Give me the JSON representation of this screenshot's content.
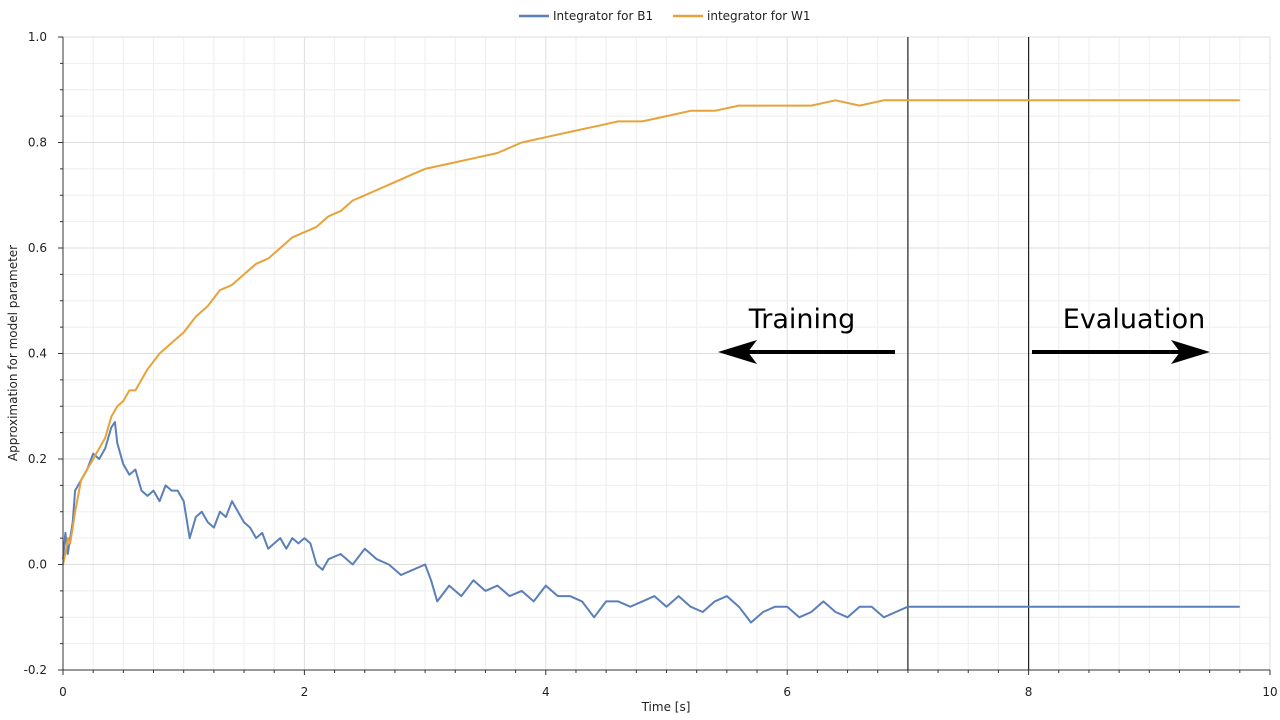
{
  "colors": {
    "b1": "#5B7FB8",
    "w1": "#E8A23A"
  },
  "chart_data": {
    "type": "line",
    "title": "",
    "xlabel": "Time [s]",
    "ylabel": "Approximation for  model parameter",
    "xlim": [
      0,
      10
    ],
    "ylim": [
      -0.2,
      1.0
    ],
    "xticks": [
      0,
      2,
      4,
      6,
      8,
      10
    ],
    "xtick_labels": [
      "0",
      "2",
      "4",
      "6",
      "8",
      "10"
    ],
    "yticks": [
      -0.2,
      0.0,
      0.2,
      0.4,
      0.6,
      0.8,
      1.0
    ],
    "ytick_labels": [
      "-0.2",
      "0.0",
      "0.2",
      "0.4",
      "0.6",
      "0.8",
      "1.0"
    ],
    "grid": true,
    "legend_position": "top-center",
    "vlines": [
      7.0,
      8.0
    ],
    "annotations": [
      {
        "text": "Training",
        "arrow": "left",
        "x_from": 6.9,
        "x_to": 5.5,
        "y": 0.4
      },
      {
        "text": "Evaluation",
        "arrow": "right",
        "x_from": 8.05,
        "x_to": 9.65,
        "y": 0.4
      }
    ],
    "series": [
      {
        "name": "Integrator for B1",
        "color": "#5B7FB8",
        "x": [
          0.0,
          0.02,
          0.04,
          0.06,
          0.08,
          0.1,
          0.15,
          0.2,
          0.25,
          0.3,
          0.35,
          0.4,
          0.43,
          0.45,
          0.5,
          0.55,
          0.6,
          0.65,
          0.7,
          0.75,
          0.8,
          0.85,
          0.9,
          0.95,
          1.0,
          1.05,
          1.1,
          1.15,
          1.2,
          1.25,
          1.3,
          1.35,
          1.4,
          1.45,
          1.5,
          1.55,
          1.6,
          1.65,
          1.7,
          1.75,
          1.8,
          1.85,
          1.9,
          1.95,
          2.0,
          2.05,
          2.1,
          2.15,
          2.2,
          2.3,
          2.4,
          2.5,
          2.6,
          2.7,
          2.8,
          2.9,
          3.0,
          3.05,
          3.1,
          3.2,
          3.3,
          3.4,
          3.5,
          3.6,
          3.7,
          3.8,
          3.9,
          4.0,
          4.05,
          4.1,
          4.2,
          4.3,
          4.4,
          4.5,
          4.6,
          4.7,
          4.8,
          4.9,
          5.0,
          5.1,
          5.2,
          5.3,
          5.4,
          5.5,
          5.6,
          5.7,
          5.8,
          5.9,
          6.0,
          6.1,
          6.2,
          6.3,
          6.4,
          6.5,
          6.6,
          6.7,
          6.8,
          6.9,
          7.0,
          7.5,
          8.0,
          8.5,
          9.0,
          9.5,
          9.75
        ],
        "values": [
          0.01,
          0.06,
          0.02,
          0.05,
          0.08,
          0.14,
          0.16,
          0.18,
          0.21,
          0.2,
          0.22,
          0.26,
          0.27,
          0.23,
          0.19,
          0.17,
          0.18,
          0.14,
          0.13,
          0.14,
          0.12,
          0.15,
          0.14,
          0.14,
          0.12,
          0.05,
          0.09,
          0.1,
          0.08,
          0.07,
          0.1,
          0.09,
          0.12,
          0.1,
          0.08,
          0.07,
          0.05,
          0.06,
          0.03,
          0.04,
          0.05,
          0.03,
          0.05,
          0.04,
          0.05,
          0.04,
          0.0,
          -0.01,
          0.01,
          0.02,
          0.0,
          0.03,
          0.01,
          0.0,
          -0.02,
          -0.01,
          0.0,
          -0.03,
          -0.07,
          -0.04,
          -0.06,
          -0.03,
          -0.05,
          -0.04,
          -0.06,
          -0.05,
          -0.07,
          -0.04,
          -0.05,
          -0.06,
          -0.06,
          -0.07,
          -0.1,
          -0.07,
          -0.07,
          -0.08,
          -0.07,
          -0.06,
          -0.08,
          -0.06,
          -0.08,
          -0.09,
          -0.07,
          -0.06,
          -0.08,
          -0.11,
          -0.09,
          -0.08,
          -0.08,
          -0.1,
          -0.09,
          -0.07,
          -0.09,
          -0.1,
          -0.08,
          -0.08,
          -0.1,
          -0.09,
          -0.08,
          -0.08,
          -0.08,
          -0.08,
          -0.08,
          -0.08,
          -0.08
        ]
      },
      {
        "name": "integrator for W1",
        "color": "#E8A23A",
        "x": [
          0.0,
          0.02,
          0.04,
          0.06,
          0.08,
          0.1,
          0.15,
          0.2,
          0.25,
          0.3,
          0.35,
          0.4,
          0.45,
          0.5,
          0.55,
          0.6,
          0.7,
          0.8,
          0.9,
          1.0,
          1.1,
          1.2,
          1.3,
          1.4,
          1.5,
          1.6,
          1.7,
          1.8,
          1.9,
          2.0,
          2.1,
          2.2,
          2.3,
          2.4,
          2.5,
          2.6,
          2.7,
          2.8,
          2.9,
          3.0,
          3.2,
          3.4,
          3.6,
          3.8,
          4.0,
          4.2,
          4.4,
          4.6,
          4.8,
          5.0,
          5.2,
          5.4,
          5.6,
          5.8,
          6.0,
          6.2,
          6.4,
          6.6,
          6.8,
          6.9,
          7.0,
          7.5,
          8.0,
          8.5,
          9.0,
          9.5,
          9.75
        ],
        "values": [
          0.0,
          0.02,
          0.05,
          0.04,
          0.07,
          0.1,
          0.16,
          0.18,
          0.2,
          0.22,
          0.24,
          0.28,
          0.3,
          0.31,
          0.33,
          0.33,
          0.37,
          0.4,
          0.42,
          0.44,
          0.47,
          0.49,
          0.52,
          0.53,
          0.55,
          0.57,
          0.58,
          0.6,
          0.62,
          0.63,
          0.64,
          0.66,
          0.67,
          0.69,
          0.7,
          0.71,
          0.72,
          0.73,
          0.74,
          0.75,
          0.76,
          0.77,
          0.78,
          0.8,
          0.81,
          0.82,
          0.83,
          0.84,
          0.84,
          0.85,
          0.86,
          0.86,
          0.87,
          0.87,
          0.87,
          0.87,
          0.88,
          0.87,
          0.88,
          0.88,
          0.88,
          0.88,
          0.88,
          0.88,
          0.88,
          0.88,
          0.88
        ]
      }
    ]
  }
}
